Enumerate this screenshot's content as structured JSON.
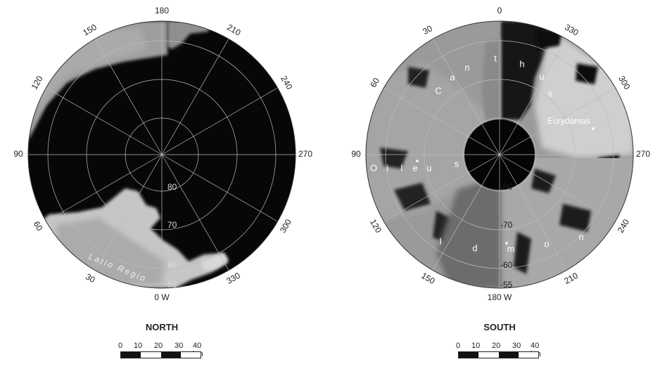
{
  "north": {
    "title": "NORTH",
    "rim_labels": [
      "180",
      "210",
      "240",
      "270",
      "300",
      "330",
      "0 W",
      "30",
      "60",
      "90",
      "120",
      "150"
    ],
    "lat_labels": [
      "80",
      "70",
      "60",
      "55"
    ],
    "features": [
      {
        "name": "Latio Regio"
      }
    ]
  },
  "south": {
    "title": "SOUTH",
    "rim_labels": [
      "0",
      "330",
      "300",
      "270",
      "240",
      "210",
      "180 W",
      "150",
      "120",
      "90",
      "60",
      "30"
    ],
    "lat_labels": [
      "-80",
      "-70",
      "-60",
      "-55"
    ],
    "features": [
      {
        "name": "Canthus",
        "letters": [
          "C",
          "a",
          "n",
          "t",
          "h",
          "u",
          "s"
        ]
      },
      {
        "name": "Eurydamas"
      },
      {
        "name": "Oileus",
        "letters": [
          "O",
          "i",
          "l",
          "e",
          "u",
          "s"
        ]
      },
      {
        "name": "Idmon",
        "letters": [
          "I",
          "d",
          "m",
          "o",
          "n"
        ]
      }
    ]
  },
  "scale_bar": {
    "labels": [
      "0",
      "10",
      "20",
      "30",
      "40 km"
    ]
  },
  "colors": {
    "dark_terrain": "#070707",
    "bright_terrain": "#c8c8c8",
    "mid_terrain": "#9a9a9a",
    "grid": "#bbbbbb",
    "text": "#222222"
  }
}
